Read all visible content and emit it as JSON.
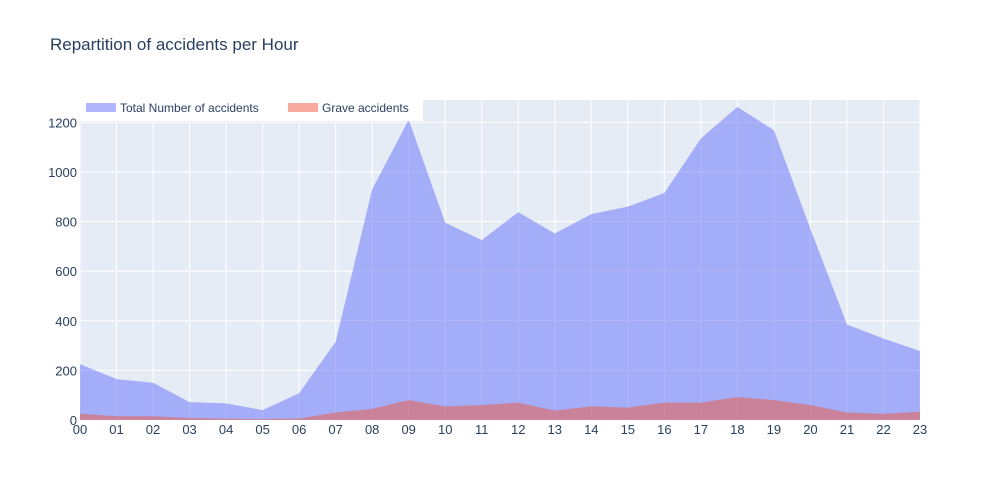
{
  "chart_data": {
    "type": "area",
    "title": "Repartition of accidents per Hour",
    "xlabel": "",
    "ylabel": "",
    "categories": [
      "00",
      "01",
      "02",
      "03",
      "04",
      "05",
      "06",
      "07",
      "08",
      "09",
      "10",
      "11",
      "12",
      "13",
      "14",
      "15",
      "16",
      "17",
      "18",
      "19",
      "20",
      "21",
      "22",
      "23"
    ],
    "ylim": [
      0,
      1290
    ],
    "yticks": [
      0,
      200,
      400,
      600,
      800,
      1000,
      1200
    ],
    "grid": true,
    "legend_position": "top-left",
    "series": [
      {
        "name": "Total Number of accidents",
        "color": "#636efa",
        "values": [
          225,
          165,
          150,
          72,
          67,
          40,
          108,
          315,
          930,
          1210,
          795,
          725,
          838,
          752,
          830,
          860,
          915,
          1135,
          1262,
          1168,
          770,
          385,
          328,
          278
        ]
      },
      {
        "name": "Grave accidents",
        "color": "#ef553b",
        "values": [
          25,
          15,
          15,
          8,
          5,
          4,
          6,
          30,
          45,
          80,
          55,
          60,
          70,
          38,
          55,
          50,
          70,
          70,
          92,
          80,
          60,
          30,
          25,
          33
        ]
      }
    ]
  }
}
